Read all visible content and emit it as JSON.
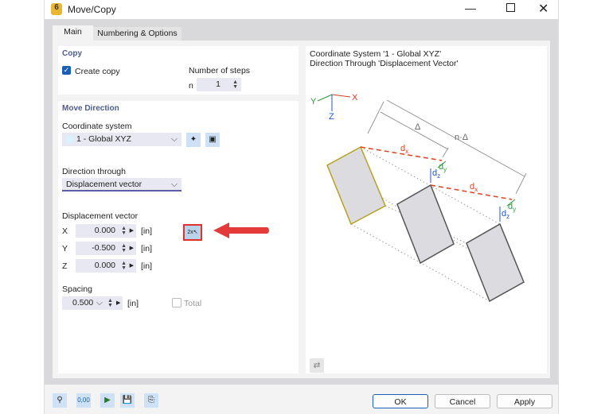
{
  "window": {
    "title": "Move/Copy"
  },
  "tabs": [
    {
      "label": "Main",
      "active": true
    },
    {
      "label": "Numbering & Options"
    }
  ],
  "copy": {
    "header": "Copy",
    "create_copy_label": "Create copy",
    "create_copy_checked": true,
    "steps_label": "Number of steps",
    "n_label": "n",
    "n_value": "1"
  },
  "move": {
    "header": "Move Direction",
    "coord_label": "Coordinate system",
    "coord_value": "1 - Global XYZ",
    "direction_label": "Direction through",
    "direction_value": "Displacement vector",
    "disp_label": "Displacement vector",
    "vector": [
      {
        "axis": "X",
        "value": "0.000",
        "unit": "[in]"
      },
      {
        "axis": "Y",
        "value": "-0.500",
        "unit": "[in]"
      },
      {
        "axis": "Z",
        "value": "0.000",
        "unit": "[in]"
      }
    ],
    "spacing_label": "Spacing",
    "spacing_value": "0.500",
    "spacing_unit": "[in]",
    "total_label": "Total",
    "total_checked": false
  },
  "preview": {
    "line1": "Coordinate System '1 - Global XYZ'",
    "line2": "Direction Through 'Displacement Vector'",
    "labels": {
      "x": "X",
      "y": "Y",
      "z": "Z",
      "delta": "Δ",
      "ndelta": "n·Δ",
      "dx": "d",
      "dy": "d",
      "dz": "d",
      "sx": "x",
      "sy": "y",
      "sz": "z"
    }
  },
  "footer": {
    "ok": "OK",
    "cancel": "Cancel",
    "apply": "Apply",
    "values_icon_text": "0,00"
  },
  "colors": {
    "accent": "#1a5fb4",
    "highlight": "#e03030",
    "header": "#4d5e8a"
  }
}
